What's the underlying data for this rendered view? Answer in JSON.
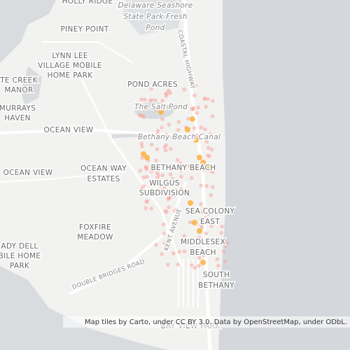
{
  "map": {
    "labels": [
      {
        "lines": [
          "HOLLY RIDGE"
        ]
      },
      {
        "lines": [
          "Delaware Seashore",
          "State Park Fresh",
          "Pond"
        ]
      },
      {
        "lines": [
          "PINEY POINT"
        ]
      },
      {
        "lines": [
          "LYNN LEE",
          "VILLAGE MOBILE",
          "HOME PARK"
        ]
      },
      {
        "lines": [
          "TE CREEK",
          "MANOR"
        ]
      },
      {
        "lines": [
          "MURRAYS",
          "HAVEN"
        ]
      },
      {
        "lines": [
          "POND ACRES"
        ]
      },
      {
        "lines": [
          "The Salt Pond"
        ]
      },
      {
        "lines": [
          "OCEAN VIEW"
        ]
      },
      {
        "lines": [
          "Bethany Beach Canal"
        ]
      },
      {
        "lines": [
          "OCEAN VIEW"
        ]
      },
      {
        "lines": [
          "OCEAN WAY",
          "ESTATES"
        ]
      },
      {
        "lines": [
          "BETHANY BEACH"
        ]
      },
      {
        "lines": [
          "WILGUS",
          "SUBDIVISION"
        ]
      },
      {
        "lines": [
          "SEA COLONY",
          "EAST"
        ]
      },
      {
        "lines": [
          "FOXFIRE",
          "MEADOW"
        ]
      },
      {
        "lines": [
          "MIDDLESEX",
          "BEACH"
        ]
      },
      {
        "lines": [
          "ADY DELL",
          "BILE HOME",
          "PARK"
        ]
      },
      {
        "lines": [
          "SOUTH",
          "BETHANY"
        ]
      },
      {
        "lines": [
          "BAY VIEW PARK"
        ]
      },
      {
        "lines": [
          "COASTAL HIGHWAY"
        ]
      },
      {
        "lines": [
          "KENT AVENUE"
        ]
      },
      {
        "lines": [
          "DOUBLE BRIDGES ROAD"
        ]
      }
    ],
    "attribution": "Map tiles by Carto, under CC BY 3.0. Data by OpenStreetMap, under ODbL."
  }
}
